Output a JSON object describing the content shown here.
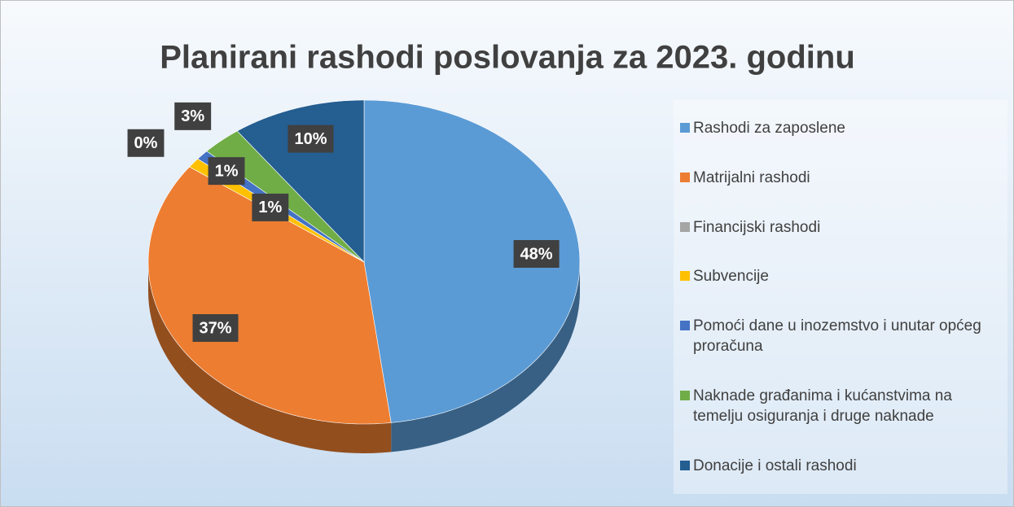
{
  "chart_data": {
    "type": "pie",
    "title": "Planirani rashodi poslovanja za 2023. godinu",
    "categories": [
      "Rashodi za zaposlene",
      "Matrijalni rashodi",
      "Financijski rashodi",
      "Subvencije",
      "Pomoći dane u inozemstvo i unutar općeg proračuna",
      "Naknade građanima i kućanstvima na temelju osiguranja i druge naknade",
      "Donacije i ostali rashodi"
    ],
    "values": [
      48,
      37,
      0,
      1,
      1,
      3,
      10
    ],
    "value_labels": [
      "48%",
      "37%",
      "0%",
      "1%",
      "1%",
      "3%",
      "10%"
    ],
    "colors": [
      "#5b9bd5",
      "#ed7d31",
      "#a5a5a5",
      "#ffc000",
      "#4472c4",
      "#70ad47",
      "#255e91"
    ],
    "legend": "right"
  }
}
